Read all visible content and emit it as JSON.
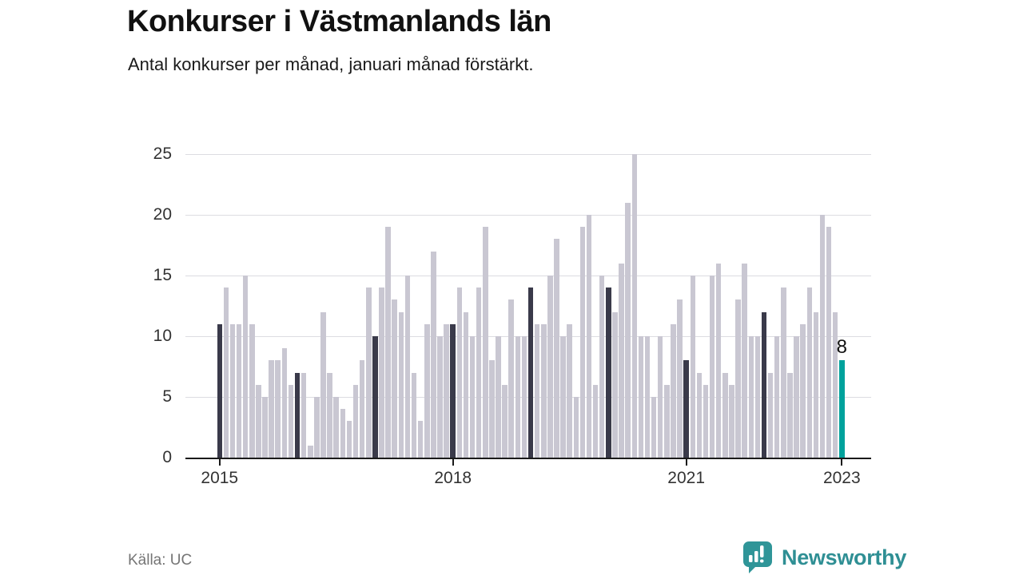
{
  "header": {
    "title": "Konkurser i Västmanlands län",
    "subtitle": "Antal konkurser per månad, januari månad förstärkt."
  },
  "footer": {
    "source": "Källa: UC",
    "brand": "Newsworthy"
  },
  "chart_data": {
    "type": "bar",
    "title": "Konkurser i Västmanlands län",
    "subtitle": "Antal konkurser per månad, januari månad förstärkt.",
    "ylabel": "Antal konkurser",
    "xlabel": "",
    "ylim": [
      0,
      25
    ],
    "yticks": [
      0,
      5,
      10,
      15,
      20,
      25
    ],
    "grid": "horizontal",
    "start_month": "2015-01",
    "end_month": "2023-01",
    "highlight_rule": "januari månad förstärkt (mörka staplar), senaste månaden i turkos",
    "series": [
      {
        "name": "Konkurser per månad",
        "values_by_year": {
          "2015": [
            11,
            14,
            11,
            11,
            15,
            11,
            6,
            5,
            8,
            8,
            9,
            6
          ],
          "2016": [
            7,
            7,
            1,
            5,
            12,
            7,
            5,
            4,
            3,
            6,
            8,
            14
          ],
          "2017": [
            10,
            14,
            19,
            13,
            12,
            15,
            7,
            3,
            11,
            17,
            10,
            11
          ],
          "2018": [
            11,
            14,
            12,
            10,
            14,
            19,
            8,
            10,
            6,
            13,
            10,
            10
          ],
          "2019": [
            14,
            11,
            11,
            15,
            18,
            10,
            11,
            5,
            19,
            20,
            6,
            15
          ],
          "2020": [
            14,
            12,
            16,
            21,
            25,
            10,
            10,
            5,
            10,
            6,
            11,
            13
          ],
          "2021": [
            8,
            15,
            7,
            6,
            15,
            16,
            7,
            6,
            13,
            16,
            10,
            10
          ],
          "2022": [
            12,
            7,
            10,
            14,
            7,
            10,
            11,
            14,
            12,
            20,
            19,
            12
          ],
          "2023": [
            8
          ]
        }
      }
    ],
    "xticks": [
      {
        "label": "2015",
        "month_index": 0
      },
      {
        "label": "2018",
        "month_index": 36
      },
      {
        "label": "2021",
        "month_index": 72
      },
      {
        "label": "2023",
        "month_index": 96
      }
    ],
    "annotation": {
      "target": "2023-01",
      "label": "8"
    },
    "colors": {
      "default_bar": "#c9c7d2",
      "january_bar": "#3a3a4a",
      "latest_bar": "#00a29c",
      "gridline": "#dcdce1",
      "axis": "#1a1a1a",
      "tick_text": "#333333"
    },
    "legend": "none"
  }
}
